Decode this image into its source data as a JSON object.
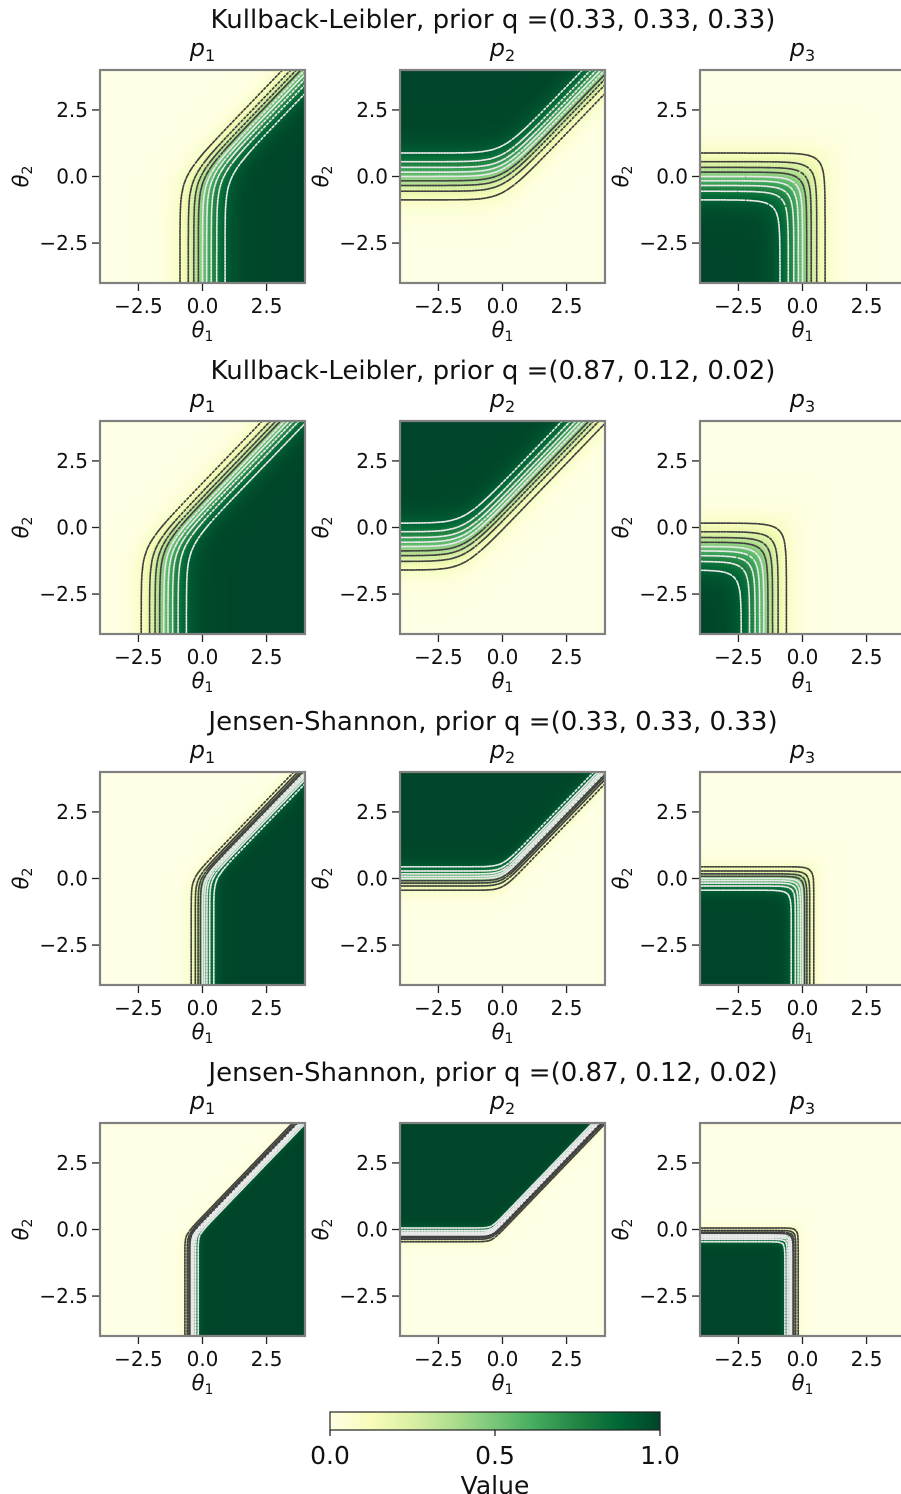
{
  "colormap": {
    "name": "YlGn",
    "stops": [
      "#ffffe5",
      "#f7fcb9",
      "#d9f0a3",
      "#addd8e",
      "#78c679",
      "#41ab5d",
      "#238443",
      "#006837",
      "#004529"
    ]
  },
  "contour_colors": {
    "low": "#404040",
    "high": "#e8e8e8"
  },
  "chart_data": [
    {
      "type": "heatmap",
      "title": "Kullback-Leibler, prior q =(0.33, 0.33, 0.33)",
      "divergence": "Kullback-Leibler",
      "prior": [
        0.33,
        0.33,
        0.33
      ],
      "prior_weights": [
        0.333,
        0.333,
        0.334
      ],
      "sharpness": 1.0,
      "panels": [
        {
          "title": "p",
          "index": "1"
        },
        {
          "title": "p",
          "index": "2"
        },
        {
          "title": "p",
          "index": "3"
        }
      ],
      "xlabel": "θ",
      "xlabel_sub": "1",
      "ylabel": "θ",
      "ylabel_sub": "2",
      "xlim": [
        -4,
        4
      ],
      "ylim": [
        -4,
        4
      ],
      "xticks": [
        "−2.5",
        "0.0",
        "2.5"
      ],
      "yticks": [
        "2.5",
        "0.0",
        "−2.5"
      ],
      "contour_levels": [
        0.1,
        0.2,
        0.3,
        0.4,
        0.5,
        0.6,
        0.7,
        0.8,
        0.9
      ]
    },
    {
      "type": "heatmap",
      "title": "Kullback-Leibler, prior q =(0.87, 0.12, 0.02)",
      "divergence": "Kullback-Leibler",
      "prior": [
        0.87,
        0.12,
        0.02
      ],
      "prior_weights": [
        0.87,
        0.12,
        0.02
      ],
      "sharpness": 1.0,
      "panels": [
        {
          "title": "p",
          "index": "1"
        },
        {
          "title": "p",
          "index": "2"
        },
        {
          "title": "p",
          "index": "3"
        }
      ],
      "xlabel": "θ",
      "xlabel_sub": "1",
      "ylabel": "θ",
      "ylabel_sub": "2",
      "xlim": [
        -4,
        4
      ],
      "ylim": [
        -4,
        4
      ],
      "xticks": [
        "−2.5",
        "0.0",
        "2.5"
      ],
      "yticks": [
        "2.5",
        "0.0",
        "−2.5"
      ],
      "contour_levels": [
        0.1,
        0.2,
        0.3,
        0.4,
        0.5,
        0.6,
        0.7,
        0.8,
        0.9
      ]
    },
    {
      "type": "heatmap",
      "title": "Jensen-Shannon, prior q =(0.33, 0.33, 0.33)",
      "divergence": "Jensen-Shannon",
      "prior": [
        0.33,
        0.33,
        0.33
      ],
      "prior_weights": [
        0.333,
        0.333,
        0.334
      ],
      "sharpness": 2.0,
      "panels": [
        {
          "title": "p",
          "index": "1"
        },
        {
          "title": "p",
          "index": "2"
        },
        {
          "title": "p",
          "index": "3"
        }
      ],
      "xlabel": "θ",
      "xlabel_sub": "1",
      "ylabel": "θ",
      "ylabel_sub": "2",
      "xlim": [
        -4,
        4
      ],
      "ylim": [
        -4,
        4
      ],
      "xticks": [
        "−2.5",
        "0.0",
        "2.5"
      ],
      "yticks": [
        "2.5",
        "0.0",
        "−2.5"
      ],
      "contour_levels": [
        0.1,
        0.2,
        0.3,
        0.4,
        0.5,
        0.6,
        0.7,
        0.8,
        0.9
      ]
    },
    {
      "type": "heatmap",
      "title": "Jensen-Shannon, prior q =(0.87, 0.12, 0.02)",
      "divergence": "Jensen-Shannon",
      "prior": [
        0.87,
        0.12,
        0.02
      ],
      "prior_weights": [
        0.87,
        0.12,
        0.02
      ],
      "sharpness": 3.5,
      "panels": [
        {
          "title": "p",
          "index": "1"
        },
        {
          "title": "p",
          "index": "2"
        },
        {
          "title": "p",
          "index": "3"
        }
      ],
      "xlabel": "θ",
      "xlabel_sub": "1",
      "ylabel": "θ",
      "ylabel_sub": "2",
      "xlim": [
        -4,
        4
      ],
      "ylim": [
        -4,
        4
      ],
      "xticks": [
        "−2.5",
        "0.0",
        "2.5"
      ],
      "yticks": [
        "2.5",
        "0.0",
        "−2.5"
      ],
      "contour_levels": [
        0.1,
        0.2,
        0.3,
        0.4,
        0.5,
        0.6,
        0.7,
        0.8,
        0.9
      ]
    }
  ],
  "colorbar": {
    "label": "Value",
    "range": [
      0,
      1
    ],
    "ticks": [
      {
        "value": 0,
        "label": "0.0"
      },
      {
        "value": 0.5,
        "label": "0.5"
      },
      {
        "value": 1,
        "label": "1.0"
      }
    ]
  }
}
